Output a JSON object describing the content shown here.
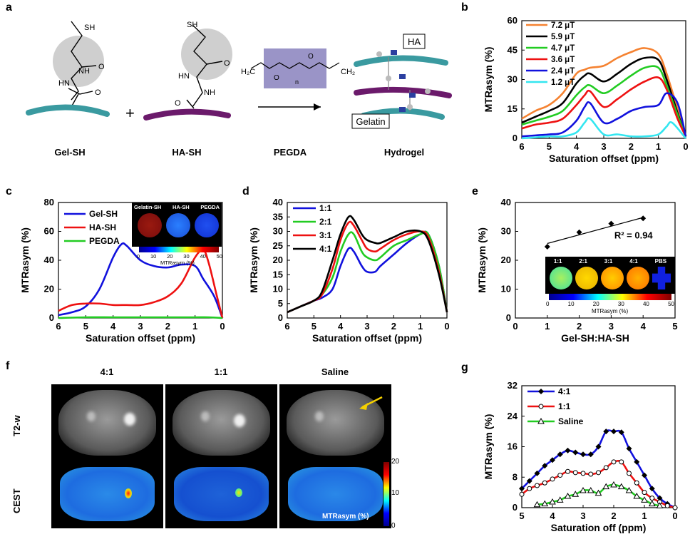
{
  "panel_letters": [
    "a",
    "b",
    "c",
    "d",
    "e",
    "f",
    "g"
  ],
  "panel_a": {
    "labels": [
      "Gel-SH",
      "HA-SH",
      "PEGDA",
      "Hydrogel"
    ],
    "box_HA": "HA",
    "box_Gelatin": "Gelatin",
    "thiol": "SH",
    "nh": "NH",
    "hn": "HN",
    "o": "O",
    "n": "n",
    "plus": "+"
  },
  "panel_f": {
    "columns": [
      "4:1",
      "1:1",
      "Saline"
    ],
    "rows": [
      "T2-w",
      "CEST"
    ],
    "colorbar_ticks": [
      "20",
      "10",
      "0"
    ],
    "colorbar_label": "MTRasym (%)"
  },
  "chart_data": [
    {
      "panel": "b",
      "type": "line",
      "xlabel": "Saturation offset (ppm)",
      "ylabel": "MTRasym (%)",
      "xlim": [
        6,
        0
      ],
      "ylim": [
        0,
        60
      ],
      "xticks": [
        6,
        5,
        4,
        3,
        2,
        1,
        0
      ],
      "yticks": [
        0,
        15,
        30,
        45,
        60
      ],
      "legend": "top-left",
      "series": [
        {
          "name": "7.2 μT",
          "color": "#f58231",
          "x": [
            6,
            5.5,
            5,
            4.5,
            4,
            3.7,
            3.5,
            3,
            2.5,
            2,
            1.5,
            1,
            0.7,
            0.3,
            0
          ],
          "y": [
            10,
            14,
            17,
            23,
            33,
            35,
            36,
            37,
            41,
            44,
            46,
            43,
            33,
            15,
            1
          ]
        },
        {
          "name": "5.9 μT",
          "color": "#000000",
          "x": [
            6,
            5.5,
            5,
            4.5,
            4,
            3.7,
            3.5,
            3,
            2.5,
            2,
            1.5,
            1,
            0.7,
            0.3,
            0
          ],
          "y": [
            8,
            11,
            14,
            18,
            28,
            32,
            33,
            29,
            33,
            38,
            41,
            40,
            30,
            13,
            1
          ]
        },
        {
          "name": "4.7 μT",
          "color": "#22cc22",
          "x": [
            6,
            5.5,
            5,
            4.5,
            4,
            3.7,
            3.5,
            3,
            2.5,
            2,
            1.5,
            1,
            0.7,
            0.3,
            0
          ],
          "y": [
            7,
            9,
            11,
            14,
            22,
            26,
            27,
            23,
            27,
            32,
            36,
            36,
            27,
            12,
            1
          ]
        },
        {
          "name": "3.6 μT",
          "color": "#ee1111",
          "x": [
            6,
            5.5,
            5,
            4.5,
            4,
            3.7,
            3.5,
            3,
            2.5,
            2,
            1.5,
            1,
            0.7,
            0.3,
            0
          ],
          "y": [
            5,
            7,
            8,
            10,
            17,
            22,
            24,
            16,
            20,
            25,
            29,
            31,
            25,
            10,
            1
          ]
        },
        {
          "name": "2.4 μT",
          "color": "#1111dd",
          "x": [
            6,
            5.5,
            5,
            4.5,
            4,
            3.7,
            3.5,
            3,
            2.5,
            2,
            1.5,
            1,
            0.7,
            0.3,
            0
          ],
          "y": [
            1,
            1.5,
            2,
            3,
            9,
            16,
            18,
            8,
            10,
            14,
            16,
            17,
            23,
            18,
            1
          ]
        },
        {
          "name": "1.2 μT",
          "color": "#33e6f0",
          "x": [
            6,
            5.5,
            5,
            4.5,
            4,
            3.7,
            3.5,
            3,
            2.5,
            2,
            1.5,
            1,
            0.7,
            0.5,
            0
          ],
          "y": [
            0,
            0.5,
            1,
            1,
            3,
            8,
            10,
            2,
            2,
            1,
            1,
            2,
            6,
            8,
            0
          ]
        }
      ]
    },
    {
      "panel": "c",
      "type": "line",
      "xlabel": "Saturation offset (ppm)",
      "ylabel": "MTRasym (%)",
      "xlim": [
        6,
        0
      ],
      "ylim": [
        0,
        80
      ],
      "xticks": [
        6,
        5,
        4,
        3,
        2,
        1,
        0
      ],
      "yticks": [
        0,
        20,
        40,
        60,
        80
      ],
      "legend": "top-left",
      "series": [
        {
          "name": "Gel-SH",
          "color": "#1111dd",
          "x": [
            6,
            5.5,
            5,
            4.5,
            4,
            3.7,
            3.5,
            3,
            2.5,
            2,
            1.5,
            1,
            0.7,
            0.3,
            0
          ],
          "y": [
            2,
            4,
            8,
            20,
            42,
            51,
            50,
            40,
            36,
            35,
            37,
            36,
            27,
            15,
            0
          ]
        },
        {
          "name": "HA-SH",
          "color": "#ee1111",
          "x": [
            6,
            5.5,
            5,
            4.5,
            4,
            3.5,
            3,
            2.5,
            2,
            1.5,
            1,
            0.7,
            0.5,
            0.2,
            0
          ],
          "y": [
            5,
            9,
            10,
            10,
            9,
            9,
            9,
            11,
            15,
            24,
            42,
            47,
            38,
            15,
            0
          ]
        },
        {
          "name": "PEGDA",
          "color": "#22cc22",
          "x": [
            6,
            5,
            4,
            3,
            2,
            1,
            0.5,
            0
          ],
          "y": [
            0,
            0.5,
            0.5,
            0.5,
            0.5,
            0.5,
            0.5,
            0
          ]
        }
      ],
      "inset": {
        "labels": [
          "Gelatin-SH",
          "HA-SH",
          "PEGDA"
        ],
        "colorbar_ticks": [
          "0",
          "10",
          "20",
          "30",
          "40",
          "50"
        ],
        "colorbar_label": "MTRasym (%)"
      }
    },
    {
      "panel": "d",
      "type": "line",
      "xlabel": "Saturation offset (ppm)",
      "ylabel": "MTRasym (%)",
      "xlim": [
        6,
        0
      ],
      "ylim": [
        0,
        40
      ],
      "xticks": [
        6,
        5,
        4,
        3,
        2,
        1,
        0
      ],
      "yticks": [
        0,
        5,
        10,
        15,
        20,
        25,
        30,
        35,
        40
      ],
      "legend": "top-left",
      "series": [
        {
          "name": "1:1",
          "color": "#1111dd",
          "x": [
            6,
            5.5,
            5,
            4.7,
            4.3,
            4,
            3.7,
            3.5,
            3.2,
            3,
            2.7,
            2.5,
            2,
            1.5,
            1,
            0.7,
            0.3,
            0
          ],
          "y": [
            2,
            4,
            6,
            7,
            10,
            18,
            24,
            23,
            18,
            16,
            16,
            18,
            22,
            26,
            29,
            29,
            18,
            2
          ]
        },
        {
          "name": "2:1",
          "color": "#22cc22",
          "x": [
            6,
            5.5,
            5,
            4.7,
            4.3,
            4,
            3.7,
            3.5,
            3.2,
            3,
            2.7,
            2.5,
            2,
            1.5,
            1,
            0.7,
            0.3,
            0
          ],
          "y": [
            2,
            4,
            6,
            8,
            14,
            23,
            29,
            29,
            23,
            21,
            20,
            21,
            25,
            27,
            29,
            29,
            18,
            2
          ]
        },
        {
          "name": "3:1",
          "color": "#ee1111",
          "x": [
            6,
            5.5,
            5,
            4.7,
            4.3,
            4,
            3.7,
            3.5,
            3.2,
            3,
            2.7,
            2.5,
            2,
            1.5,
            1,
            0.7,
            0.3,
            0
          ],
          "y": [
            2,
            4,
            6,
            8,
            17,
            27,
            33,
            32,
            27,
            24,
            23,
            24,
            27,
            29,
            30,
            28,
            16,
            2
          ]
        },
        {
          "name": "4:1",
          "color": "#000000",
          "x": [
            6,
            5.5,
            5,
            4.7,
            4.3,
            4,
            3.7,
            3.5,
            3.2,
            3,
            2.7,
            2.5,
            2,
            1.5,
            1,
            0.7,
            0.3,
            0
          ],
          "y": [
            2,
            4,
            6,
            9,
            20,
            29,
            35,
            34,
            29,
            27,
            26,
            26,
            28,
            30,
            30,
            27,
            15,
            2
          ]
        }
      ]
    },
    {
      "panel": "e",
      "type": "scatter",
      "xlabel": "Gel-SH:HA-SH",
      "ylabel": "MTRasym (%)",
      "xlim": [
        0,
        5
      ],
      "ylim": [
        0,
        40
      ],
      "xticks": [
        0,
        1,
        2,
        3,
        4,
        5
      ],
      "yticks": [
        0,
        10,
        20,
        30,
        40
      ],
      "x": [
        1,
        2,
        3,
        4
      ],
      "y": [
        24.7,
        29.7,
        32.7,
        34.5
      ],
      "fit": {
        "x": [
          1,
          4
        ],
        "y": [
          25.8,
          34.8
        ]
      },
      "annotation": "R² = 0.94",
      "inset": {
        "labels": [
          "1:1",
          "2:1",
          "3:1",
          "4:1",
          "PBS"
        ],
        "colorbar_ticks": [
          "0",
          "10",
          "20",
          "30",
          "40",
          "50"
        ],
        "colorbar_label": "MTRasym (%)"
      }
    },
    {
      "panel": "g",
      "type": "line",
      "xlabel": "Saturation off (ppm)",
      "ylabel": "MTRasym (%)",
      "xlim": [
        5,
        0
      ],
      "ylim": [
        0,
        32
      ],
      "xticks": [
        5,
        4,
        3,
        2,
        1,
        0
      ],
      "yticks": [
        0,
        8,
        16,
        24,
        32
      ],
      "legend": "top-left",
      "series": [
        {
          "name": "4:1",
          "color": "#1111dd",
          "marker": "diamond",
          "x": [
            5,
            4.75,
            4.5,
            4.25,
            4,
            3.75,
            3.5,
            3.25,
            3,
            2.75,
            2.5,
            2.25,
            2,
            1.75,
            1.5,
            1.25,
            1,
            0.75,
            0.5,
            0.25,
            0
          ],
          "y": [
            5,
            7,
            9,
            11,
            12.5,
            14,
            15,
            14.5,
            14,
            14,
            16,
            20,
            20,
            19.8,
            15.5,
            12,
            8.5,
            5,
            2.5,
            1,
            0
          ]
        },
        {
          "name": "1:1",
          "color": "#ee1111",
          "marker": "circle",
          "x": [
            5,
            4.75,
            4.5,
            4.25,
            4,
            3.75,
            3.5,
            3.25,
            3,
            2.75,
            2.5,
            2.25,
            2,
            1.75,
            1.5,
            1.25,
            1,
            0.75,
            0.5,
            0.25,
            0
          ],
          "y": [
            3.5,
            5,
            5.8,
            6.5,
            7.5,
            8.5,
            9.5,
            9.2,
            9,
            8.8,
            9.2,
            10.5,
            12,
            12,
            9,
            6.5,
            4,
            2.5,
            1.5,
            0.5,
            0
          ]
        },
        {
          "name": "Saline",
          "color": "#22cc22",
          "marker": "triangle",
          "x": [
            4.5,
            4.25,
            4,
            3.75,
            3.5,
            3.25,
            3,
            2.75,
            2.5,
            2.25,
            2,
            1.75,
            1.5,
            1.25,
            1,
            0.75,
            0.5
          ],
          "y": [
            0.8,
            1,
            1.5,
            2,
            3,
            3.5,
            4.5,
            4.5,
            3.8,
            5.5,
            6,
            5.5,
            4.5,
            3,
            2,
            1,
            0.5
          ]
        }
      ]
    }
  ]
}
